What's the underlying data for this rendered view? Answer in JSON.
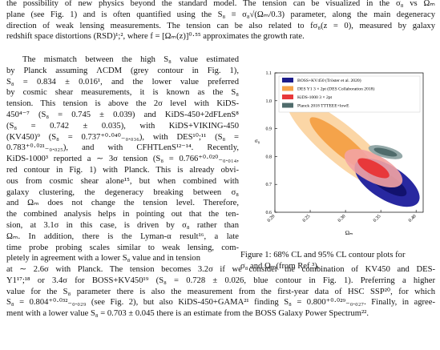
{
  "intro": {
    "lines": [
      "the possibility of new physics beyond the standard model. The tension can be visualized in the σ₈ vs Ωₘ",
      "plane (see Fig. 1) and is often quantified using the S₈ ≡ σ₈√(Ωₘ/0.3) parameter, along the main degeneracy",
      "direction of weak lensing measurements. The tension can be also related to fσ₈(z = 0), measured by galaxy",
      "redshift space distortions (RSD)¹;², where f = [Ωₘ(z)]⁰·⁵⁵ approximates the growth rate."
    ]
  },
  "column": {
    "lines": [
      "The mismatch between the high S₈ value estimated",
      "by Planck assuming ΛCDM (grey contour in Fig. 1),",
      "S₈ = 0.834 ± 0.016¹, and the lower value preferred",
      "by cosmic shear measurements, it is known as the S₈",
      "tension. This tension is above the 2σ level with KiDS-",
      "450⁴⁻⁷ (S₈ = 0.745 ± 0.039) and KiDS-450+2dFLenS⁸",
      "(S₈ = 0.742 ± 0.035), with KiDS+VIKING-450",
      "(KV450)⁹ (S₈ = 0.737⁺⁰·⁰⁴⁰₋₀.₀₃₆), with DES¹⁰;¹¹ (S₈ =",
      "0.783⁺⁰·⁰²¹₋₀.₀₂₅), and with CFHTLenS¹²⁻¹⁴. Recently,",
      "KiDS-1000³ reported a ∼ 3σ tension (S₈ = 0.766⁺⁰·⁰²⁰₋₀.₀₁₄,",
      "red contour in Fig. 1) with Planck. This is already obvi-",
      "ous from cosmic shear alone¹⁵, but when combined with",
      "galaxy clustering, the degeneracy breaking between σ₈",
      "and Ωₘ does not change the tension level. Therefore,",
      "the combined analysis helps in pointing out that the ten-",
      "sion, at 3.1σ in this case, is driven by σ₈ rather than",
      "Ωₘ. In addition, there is the Lyman-α result¹⁶, a late",
      "time probe probing scales similar to weak lensing, com-",
      "pletely in agreement with a lower S₈ value and in tension"
    ]
  },
  "closing": {
    "lines": [
      "at ∼ 2.6σ with Planck. The tension becomes 3.2σ if we consider the combination of KV450 and DES-",
      "Y1¹⁷;¹⁸ or 3.4σ for BOSS+KV450¹⁹ (S₈ = 0.728 ± 0.026, blue contour in Fig. 1). Preferring a higher",
      "value for the S₈ parameter there is also the measurement from the first-year data of HSC SSP²⁰, for which",
      "S₈ = 0.804⁺⁰·⁰³²₋₀.₀₂₉ (see Fig. 2), but also KiDS-450+GAMA²¹ finding S₈ = 0.800⁺⁰·⁰²⁹₋₀.₀₂₇. Finally, in agree-",
      "ment with a lower value S₈ = 0.703 ± 0.045 there is an estimate from the BOSS Galaxy Power Spectrum²²."
    ]
  },
  "figure": {
    "xlabel": "Ωₘ",
    "ylabel": "σ₈",
    "xlim": [
      0.2,
      0.41
    ],
    "ylim": [
      0.6,
      1.1
    ],
    "xticks": [
      {
        "value": 0.2,
        "label": "0.20"
      },
      {
        "value": 0.25,
        "label": "0.25"
      },
      {
        "value": 0.3,
        "label": "0.30"
      },
      {
        "value": 0.35,
        "label": "0.35"
      },
      {
        "value": 0.4,
        "label": "0.40"
      }
    ],
    "yticks": [
      0.6,
      0.7,
      0.8,
      0.9,
      {
        "value": 1,
        "label": "1.0"
      },
      1.1
    ],
    "legend": [
      {
        "name": "BOSS+KV450 (Tröster et al. 2020)",
        "color": "#1c1c8a"
      },
      {
        "name": "DES Y1 3 × 2pt (DES Collaboration 2018)",
        "color": "#f5a34a"
      },
      {
        "name": "KiDS-1000 3 × 2pt",
        "color": "#e8383a"
      },
      {
        "name": "Planck 2018 TTTEEE+lowE",
        "color": "#4f6b6b"
      }
    ],
    "caption": [
      "Figure 1: 68% CL and 95% CL contour plots for",
      "σ₈ and Ωₘ(from Ref.³)."
    ]
  }
}
